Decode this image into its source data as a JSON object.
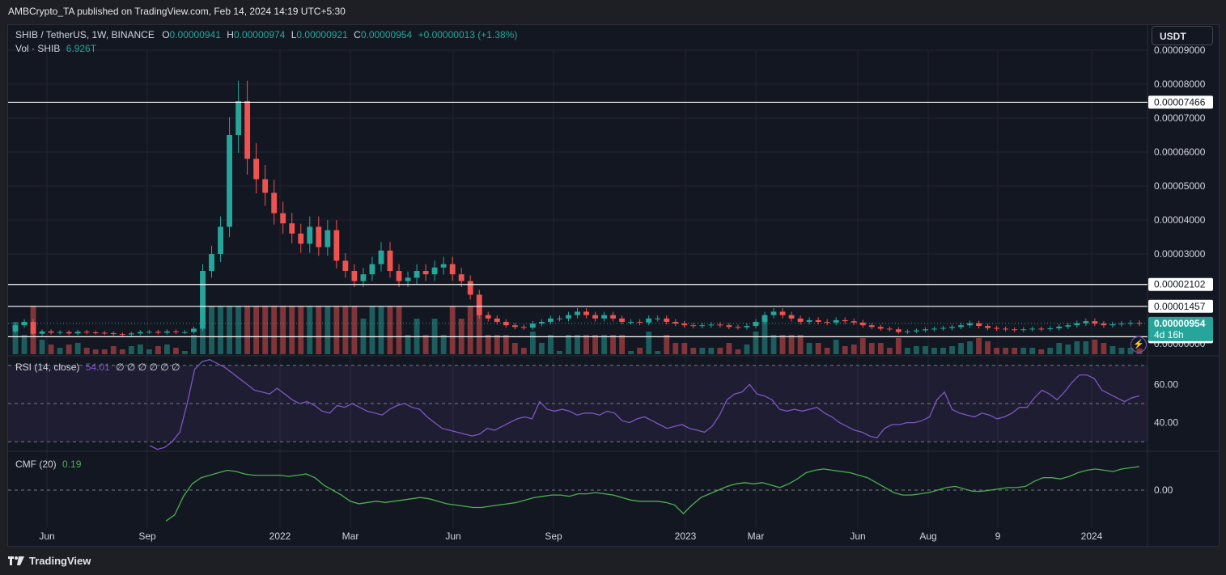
{
  "header": {
    "publisher_line": "AMBCrypto_TA published on TradingView.com, Feb 14, 2024 14:19 UTC+5:30"
  },
  "legend": {
    "symbol": "SHIB / TetherUS, 1W, BINANCE",
    "o_label": "O",
    "o": "0.00000941",
    "h_label": "H",
    "h": "0.00000974",
    "l_label": "L",
    "l": "0.00000921",
    "c_label": "C",
    "c": "0.00000954",
    "change": "+0.00000013 (+1.38%)",
    "vol_label": "Vol · SHIB",
    "vol": "6.926T",
    "rsi_label": "RSI (14, close)",
    "rsi": "54.01",
    "rsi_extra": "∅ ∅ ∅ ∅ ∅ ∅",
    "cmf_label": "CMF (20)",
    "cmf": "0.19"
  },
  "currency_button": "USDT",
  "footer": {
    "brand": "TradingView"
  },
  "colors": {
    "up": "#26a69a",
    "down": "#ef5350",
    "rsi": "#7e57c2",
    "cmf": "#4caf50",
    "bg": "#131722",
    "grid": "#232632"
  },
  "price_axis": {
    "ticks": [
      "0.00009000",
      "0.00008000",
      "0.00007000",
      "0.00006000",
      "0.00005000",
      "0.00004000",
      "0.00003000"
    ],
    "lower_tick": "0.00000000",
    "horizontal_levels": [
      "0.00007466",
      "0.00002102",
      "0.00001457",
      "0.00000563"
    ],
    "last_price": "0.00000954",
    "countdown": "4d 16h"
  },
  "rsi_axis": [
    "60.00",
    "40.00"
  ],
  "cmf_axis": [
    "0.00"
  ],
  "time_axis": [
    "Jun",
    "Sep",
    "2022",
    "Mar",
    "Jun",
    "Sep",
    "2023",
    "Mar",
    "Jun",
    "Aug",
    "9",
    "2024"
  ],
  "chart_data": [
    {
      "type": "candlestick",
      "title": "SHIB / TetherUS, 1W, BINANCE",
      "ylim": [
        0,
        9e-05
      ],
      "x_range": [
        "2021-05",
        "2024-02"
      ],
      "levels": [
        7.466e-05,
        2.102e-05,
        1.457e-05,
        5.63e-06
      ],
      "weekly_close_path": [
        9e-06,
        1e-05,
        6.5e-06,
        7.2e-06,
        6.8e-06,
        7e-06,
        6.6e-06,
        7.1e-06,
        6.9e-06,
        6.8e-06,
        6.7e-06,
        6.4e-06,
        6.3e-06,
        6.6e-06,
        7e-06,
        7.1e-06,
        6.8e-06,
        7.2e-06,
        7e-06,
        7e-06,
        8e-06,
        2.5e-05,
        3e-05,
        3.8e-05,
        6.5e-05,
        7.5e-05,
        5.8e-05,
        5.2e-05,
        4.8e-05,
        4.2e-05,
        3.9e-05,
        3.6e-05,
        3.3e-05,
        3.8e-05,
        3.2e-05,
        3.7e-05,
        2.8e-05,
        2.5e-05,
        2.2e-05,
        2.4e-05,
        2.7e-05,
        3.1e-05,
        2.5e-05,
        2.2e-05,
        2.3e-05,
        2.5e-05,
        2.4e-05,
        2.6e-05,
        2.7e-05,
        2.4e-05,
        2.2e-05,
        1.8e-05,
        1.2e-05,
        1.1e-05,
        1e-05,
        9e-06,
        8.5e-06,
        8.3e-06,
        9.5e-06,
        1e-05,
        1.1e-05,
        1.1e-05,
        1.2e-05,
        1.3e-05,
        1.2e-05,
        1.1e-05,
        1.2e-05,
        1.1e-05,
        1e-05,
        1e-05,
        9.8e-06,
        1.1e-05,
        1.1e-05,
        1e-05,
        9.5e-06,
        9e-06,
        8.8e-06,
        9e-06,
        9.2e-06,
        9e-06,
        8.5e-06,
        8.4e-06,
        8.8e-06,
        1e-05,
        1.2e-05,
        1.3e-05,
        1.2e-05,
        1.1e-05,
        1e-05,
        1.05e-05,
        1e-05,
        9.8e-06,
        1.05e-05,
        1.02e-05,
        9.8e-06,
        9e-06,
        8.5e-06,
        8e-06,
        7.8e-06,
        7e-06,
        7.2e-06,
        7.5e-06,
        7.8e-06,
        8e-06,
        8.2e-06,
        8.5e-06,
        9e-06,
        9.6e-06,
        8.8e-06,
        8.2e-06,
        8e-06,
        7.8e-06,
        7.6e-06,
        7.8e-06,
        8e-06,
        7.9e-06,
        8.1e-06,
        8.6e-06,
        9e-06,
        9.6e-06,
        1.02e-05,
        9.5e-06,
        9e-06,
        9.3e-06,
        9.5e-06,
        9.7e-06,
        9.54e-06
      ],
      "volume_last": "6.926T"
    },
    {
      "type": "line",
      "title": "RSI (14, close)",
      "ylim": [
        25,
        75
      ],
      "bands": [
        70,
        50,
        30
      ],
      "last": 54.01,
      "values": [
        28,
        26,
        27,
        30,
        35,
        50,
        68,
        72,
        73,
        71,
        69,
        66,
        63,
        60,
        57,
        56,
        55,
        58,
        55,
        52,
        50,
        51,
        49,
        46,
        45,
        49,
        48,
        50,
        48,
        46,
        45,
        44,
        47,
        49,
        50,
        48,
        47,
        43,
        40,
        37,
        36,
        35,
        34,
        33,
        34,
        37,
        36,
        38,
        40,
        42,
        43,
        42,
        51,
        47,
        46,
        47,
        46,
        44,
        45,
        45,
        44,
        46,
        45,
        41,
        40,
        42,
        43,
        41,
        39,
        37,
        38,
        39,
        37,
        36,
        35,
        38,
        44,
        52,
        55,
        56,
        60,
        55,
        54,
        52,
        47,
        46,
        47,
        46,
        47,
        48,
        45,
        43,
        40,
        38,
        36,
        35,
        33,
        32,
        37,
        39,
        39,
        40,
        40,
        41,
        43,
        52,
        56,
        47,
        45,
        44,
        43,
        45,
        44,
        42,
        43,
        45,
        48,
        48,
        53,
        57,
        55,
        52,
        56,
        61,
        65,
        65,
        63,
        57,
        55,
        53,
        51,
        53,
        54.01
      ]
    },
    {
      "type": "line",
      "title": "CMF (20)",
      "ylim": [
        -0.3,
        0.3
      ],
      "last": 0.19,
      "values": [
        -0.25,
        -0.2,
        -0.05,
        0.05,
        0.1,
        0.12,
        0.14,
        0.16,
        0.15,
        0.13,
        0.12,
        0.12,
        0.12,
        0.12,
        0.11,
        0.12,
        0.13,
        0.1,
        0.04,
        0.0,
        -0.04,
        -0.09,
        -0.11,
        -0.1,
        -0.09,
        -0.1,
        -0.09,
        -0.08,
        -0.07,
        -0.06,
        -0.07,
        -0.09,
        -0.11,
        -0.12,
        -0.13,
        -0.14,
        -0.14,
        -0.13,
        -0.12,
        -0.11,
        -0.1,
        -0.08,
        -0.06,
        -0.05,
        -0.04,
        -0.04,
        -0.05,
        -0.03,
        -0.03,
        -0.02,
        -0.03,
        -0.04,
        -0.06,
        -0.08,
        -0.09,
        -0.09,
        -0.09,
        -0.1,
        -0.12,
        -0.19,
        -0.12,
        -0.06,
        -0.03,
        0.0,
        0.03,
        0.05,
        0.06,
        0.05,
        0.06,
        0.04,
        0.02,
        0.05,
        0.09,
        0.14,
        0.16,
        0.17,
        0.16,
        0.15,
        0.14,
        0.12,
        0.1,
        0.06,
        0.02,
        -0.02,
        -0.04,
        -0.04,
        -0.03,
        -0.02,
        0.0,
        0.02,
        0.03,
        0.01,
        -0.01,
        -0.01,
        0.0,
        0.01,
        0.02,
        0.02,
        0.03,
        0.07,
        0.1,
        0.1,
        0.09,
        0.11,
        0.14,
        0.16,
        0.17,
        0.16,
        0.15,
        0.17,
        0.18,
        0.19
      ]
    }
  ]
}
